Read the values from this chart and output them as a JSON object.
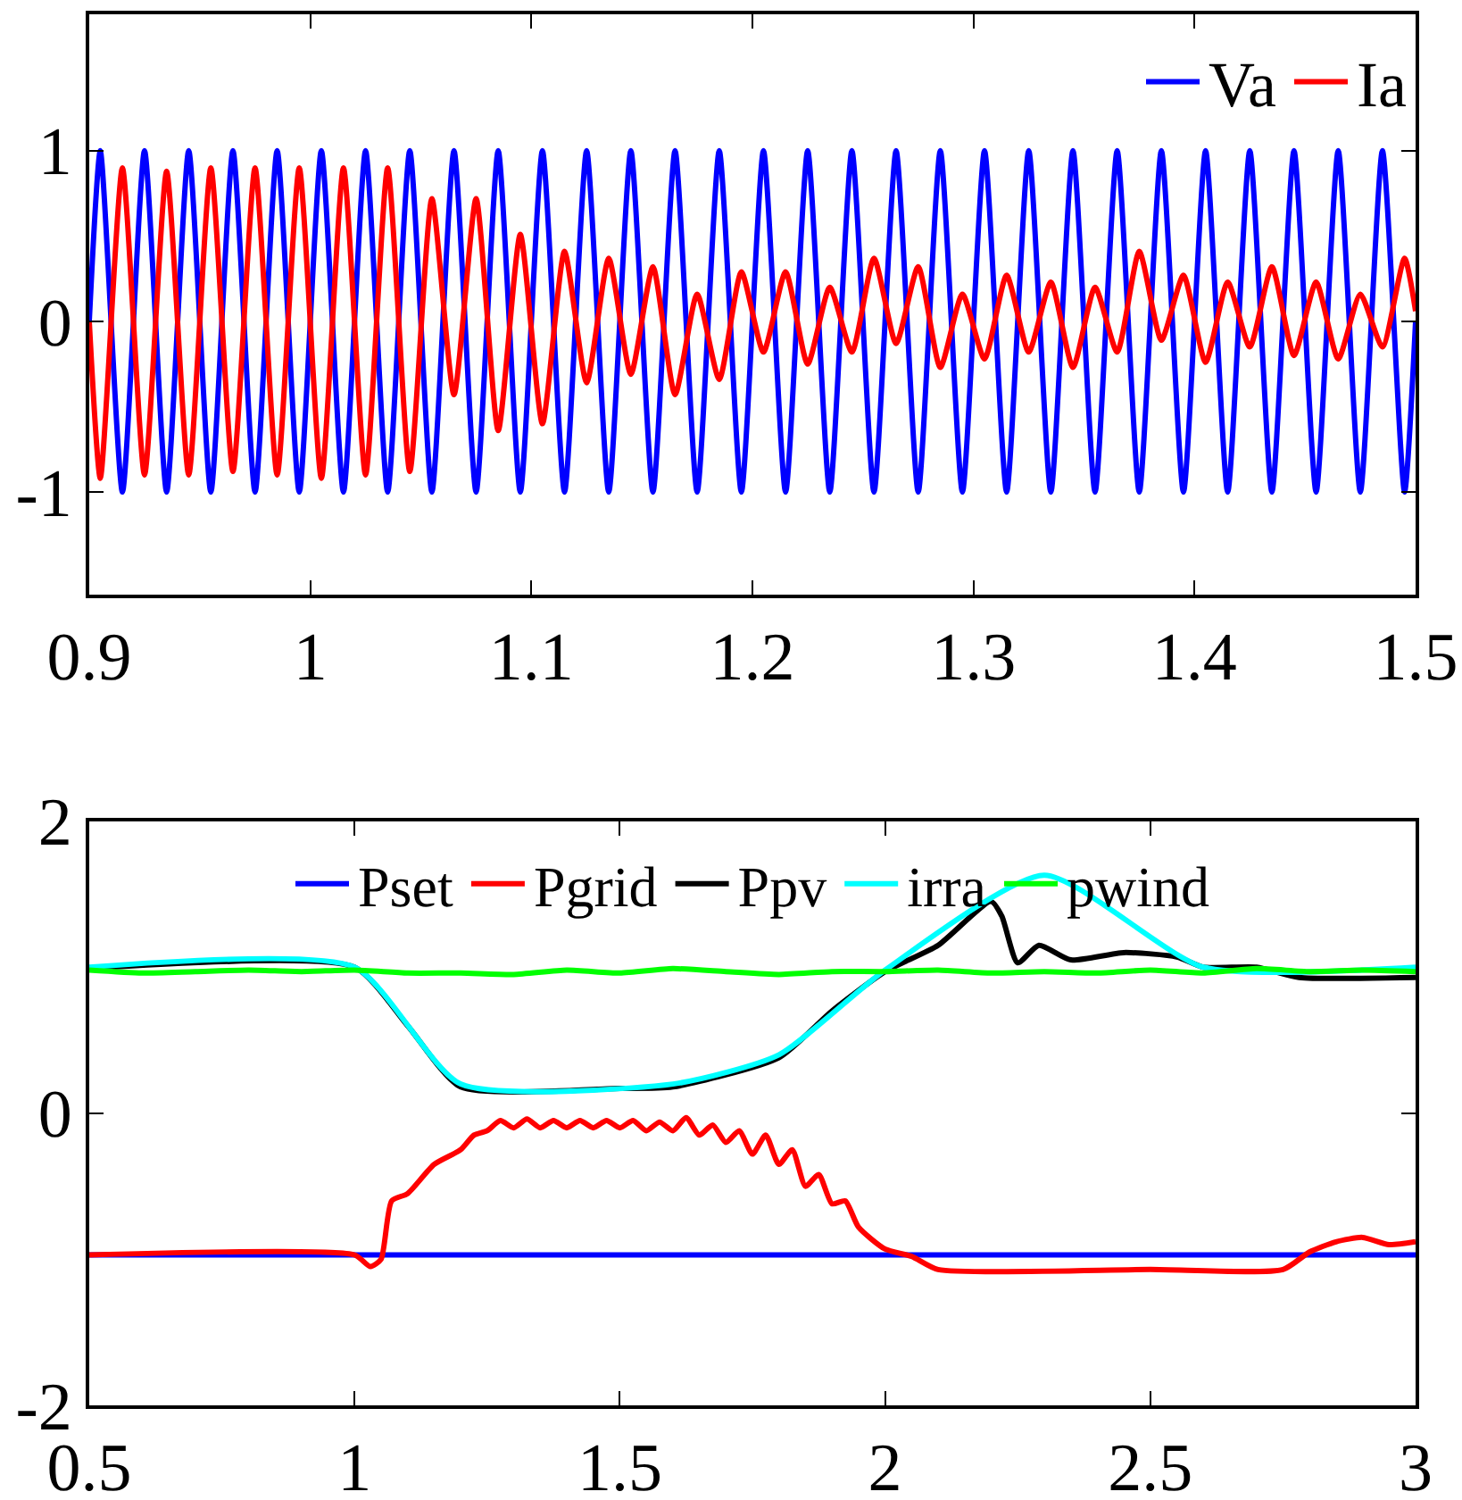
{
  "chart_data": [
    {
      "type": "line",
      "x": [
        0.9,
        0.905,
        0.915,
        0.925,
        0.935,
        0.945,
        0.955,
        0.965,
        0.975,
        0.985,
        0.995,
        1.005,
        1.015,
        1.025,
        1.035,
        1.045,
        1.055,
        1.065,
        1.075,
        1.085,
        1.095,
        1.105,
        1.115,
        1.125,
        1.135,
        1.145,
        1.155,
        1.165,
        1.175,
        1.185,
        1.195,
        1.205,
        1.215,
        1.225,
        1.235,
        1.245,
        1.255,
        1.265,
        1.275,
        1.285,
        1.295,
        1.305,
        1.315,
        1.325,
        1.335,
        1.345,
        1.355,
        1.365,
        1.375,
        1.385,
        1.395,
        1.405,
        1.415,
        1.425,
        1.435,
        1.445,
        1.455,
        1.465,
        1.475,
        1.485,
        1.495,
        1.5
      ],
      "series": [
        {
          "name": "Va",
          "color": "#0000ff",
          "values": [
            0,
            1,
            -1,
            1,
            -1,
            1,
            -1,
            1,
            -1,
            1,
            -1,
            1,
            -1,
            1,
            -1,
            1,
            -1,
            1,
            -1,
            1,
            -1,
            1,
            -1,
            1,
            -1,
            1,
            -1,
            1,
            -1,
            1,
            -1,
            1,
            -1,
            1,
            -1,
            1,
            -1,
            1,
            -1,
            1,
            -1,
            1,
            -1,
            1,
            -1,
            1,
            -1,
            1,
            -1,
            1,
            -1,
            1,
            -1,
            1,
            -1,
            1,
            -1,
            1,
            -1,
            1,
            -1,
            0
          ]
        },
        {
          "name": "Ia",
          "color": "#ff0000",
          "values": [
            0,
            -0.92,
            0.9,
            -0.9,
            0.88,
            -0.9,
            0.9,
            -0.88,
            0.9,
            -0.9,
            0.9,
            -0.92,
            0.9,
            -0.9,
            0.9,
            -0.88,
            0.72,
            -0.43,
            0.72,
            -0.64,
            0.51,
            -0.6,
            0.41,
            -0.36,
            0.37,
            -0.31,
            0.32,
            -0.43,
            0.16,
            -0.34,
            0.29,
            -0.18,
            0.29,
            -0.25,
            0.2,
            -0.18,
            0.37,
            -0.13,
            0.32,
            -0.27,
            0.16,
            -0.22,
            0.27,
            -0.18,
            0.23,
            -0.27,
            0.2,
            -0.18,
            0.41,
            -0.11,
            0.27,
            -0.24,
            0.23,
            -0.15,
            0.32,
            -0.2,
            0.23,
            -0.22,
            0.16,
            -0.15,
            0.37,
            0.06
          ]
        }
      ],
      "xlim": [
        0.9,
        1.5
      ],
      "xticks": [
        0.9,
        1,
        1.1,
        1.2,
        1.3,
        1.4,
        1.5
      ],
      "ylim": [
        -1.6,
        1.8
      ],
      "yticks": [
        -1,
        0,
        1
      ],
      "grid": false,
      "legend": "top right"
    },
    {
      "type": "line",
      "series": [
        {
          "name": "Pset",
          "color": "#0000ff",
          "x": [
            0.5,
            3
          ],
          "values": [
            -0.97,
            -0.97
          ]
        },
        {
          "name": "Pgrid",
          "color": "#ff0000",
          "x": [
            0.5,
            1,
            1.03,
            1.05,
            1.07,
            1.1,
            1.15,
            1.2,
            1.225,
            1.25,
            1.275,
            1.3,
            1.325,
            1.35,
            1.375,
            1.4,
            1.425,
            1.45,
            1.475,
            1.5,
            1.525,
            1.55,
            1.575,
            1.6,
            1.625,
            1.65,
            1.675,
            1.7,
            1.725,
            1.75,
            1.775,
            1.8,
            1.825,
            1.85,
            1.875,
            1.9,
            1.925,
            1.95,
            2,
            2.05,
            2.1,
            2.5,
            2.75,
            2.8,
            2.85,
            2.9,
            2.95,
            3
          ],
          "values": [
            -0.97,
            -0.97,
            -1.05,
            -1,
            -0.6,
            -0.55,
            -0.35,
            -0.25,
            -0.15,
            -0.12,
            -0.05,
            -0.1,
            -0.04,
            -0.1,
            -0.05,
            -0.1,
            -0.05,
            -0.1,
            -0.05,
            -0.1,
            -0.05,
            -0.12,
            -0.06,
            -0.12,
            -0.03,
            -0.15,
            -0.08,
            -0.2,
            -0.12,
            -0.28,
            -0.15,
            -0.35,
            -0.25,
            -0.5,
            -0.42,
            -0.62,
            -0.6,
            -0.78,
            -0.93,
            -0.98,
            -1.07,
            -1.07,
            -1.07,
            -0.95,
            -0.88,
            -0.85,
            -0.9,
            -0.88
          ]
        },
        {
          "name": "Ppv",
          "color": "#000000",
          "x": [
            0.5,
            1,
            1.1,
            1.2,
            1.5,
            1.6,
            1.8,
            1.9,
            2,
            2.1,
            2.2,
            2.22,
            2.25,
            2.29,
            2.35,
            2.45,
            2.55,
            2.6,
            2.7,
            2.78,
            3
          ],
          "values": [
            0.99,
            1,
            0.6,
            0.18,
            0.17,
            0.18,
            0.38,
            0.7,
            0.97,
            1.15,
            1.45,
            1.35,
            1.03,
            1.15,
            1.05,
            1.1,
            1.07,
            1,
            1,
            0.93,
            0.93
          ]
        },
        {
          "name": "irra",
          "color": "#00ffff",
          "x": [
            0.5,
            1,
            1.2,
            1.6,
            1.8,
            2,
            2.3,
            2.6,
            3
          ],
          "values": [
            1,
            1,
            0.2,
            0.2,
            0.4,
            0.98,
            1.63,
            1,
            1
          ]
        },
        {
          "name": "pwind",
          "color": "#00ff00",
          "x": [
            0.5,
            0.6,
            0.7,
            0.8,
            0.9,
            1,
            1.1,
            1.2,
            1.3,
            1.4,
            1.5,
            1.6,
            1.7,
            1.8,
            1.9,
            2,
            2.1,
            2.2,
            2.3,
            2.4,
            2.5,
            2.6,
            2.7,
            2.8,
            2.9,
            3
          ],
          "values": [
            0.98,
            0.96,
            0.97,
            0.98,
            0.97,
            0.98,
            0.96,
            0.96,
            0.95,
            0.98,
            0.96,
            0.99,
            0.97,
            0.95,
            0.97,
            0.97,
            0.98,
            0.96,
            0.97,
            0.96,
            0.98,
            0.96,
            0.99,
            0.97,
            0.98,
            0.97
          ]
        }
      ],
      "xlim": [
        0.5,
        3
      ],
      "xticks": [
        0.5,
        1,
        1.5,
        2,
        2.5,
        3
      ],
      "ylim": [
        -2,
        2
      ],
      "yticks": [
        -2,
        0,
        2
      ],
      "grid": false,
      "legend": "top"
    }
  ]
}
